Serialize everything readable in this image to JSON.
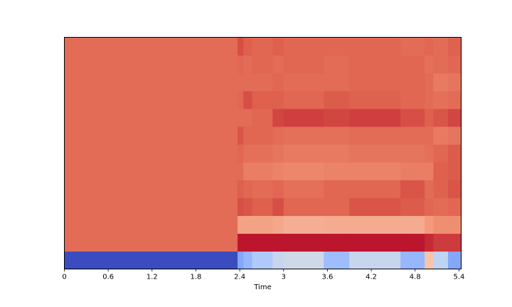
{
  "chart_data": {
    "type": "heatmap",
    "title": "",
    "xlabel": "Time",
    "ylabel": "",
    "xlim": [
      0,
      5.43
    ],
    "x_ticks": [
      0,
      0.6,
      1.2,
      1.8,
      2.4,
      3.0,
      3.6,
      4.2,
      4.8,
      5.4
    ],
    "x_tick_labels": [
      "0",
      "0.6",
      "1.2",
      "1.8",
      "2.4",
      "3",
      "3.6",
      "4.2",
      "4.8",
      "5.4"
    ],
    "y_ticks": [],
    "colormap": "coolwarm",
    "value_range": [
      -1,
      1
    ],
    "n_rows": 13,
    "time_segments": [
      {
        "start": 0.0,
        "end": 2.37,
        "values": [
          -1.0,
          0.7,
          0.7,
          0.7,
          0.7,
          0.7,
          0.7,
          0.7,
          0.7,
          0.7,
          0.7,
          0.7,
          0.7
        ]
      },
      {
        "start": 2.37,
        "end": 2.45,
        "values": [
          -0.55,
          0.95,
          0.45,
          0.8,
          0.75,
          0.7,
          0.72,
          0.78,
          0.7,
          0.72,
          0.7,
          0.72,
          0.8
        ]
      },
      {
        "start": 2.45,
        "end": 2.57,
        "values": [
          -0.45,
          0.95,
          0.45,
          0.78,
          0.72,
          0.62,
          0.68,
          0.72,
          0.7,
          0.8,
          0.7,
          0.7,
          0.75
        ]
      },
      {
        "start": 2.57,
        "end": 2.85,
        "values": [
          -0.3,
          0.95,
          0.45,
          0.75,
          0.7,
          0.62,
          0.68,
          0.72,
          0.72,
          0.75,
          0.7,
          0.72,
          0.72
        ]
      },
      {
        "start": 2.85,
        "end": 3.0,
        "values": [
          -0.15,
          0.95,
          0.42,
          0.8,
          0.72,
          0.6,
          0.66,
          0.7,
          0.82,
          0.75,
          0.72,
          0.7,
          0.75
        ]
      },
      {
        "start": 3.0,
        "end": 3.55,
        "values": [
          -0.1,
          0.95,
          0.38,
          0.72,
          0.68,
          0.58,
          0.64,
          0.68,
          0.84,
          0.72,
          0.7,
          0.72,
          0.72
        ]
      },
      {
        "start": 3.55,
        "end": 3.9,
        "values": [
          -0.4,
          0.95,
          0.4,
          0.72,
          0.72,
          0.6,
          0.64,
          0.68,
          0.82,
          0.76,
          0.7,
          0.7,
          0.72
        ]
      },
      {
        "start": 3.9,
        "end": 4.6,
        "values": [
          -0.15,
          0.95,
          0.4,
          0.78,
          0.72,
          0.6,
          0.66,
          0.7,
          0.84,
          0.74,
          0.72,
          0.72,
          0.72
        ]
      },
      {
        "start": 4.6,
        "end": 4.93,
        "values": [
          -0.45,
          0.95,
          0.4,
          0.76,
          0.78,
          0.62,
          0.66,
          0.7,
          0.8,
          0.72,
          0.72,
          0.72,
          0.7
        ]
      },
      {
        "start": 4.93,
        "end": 5.05,
        "values": [
          0.25,
          0.9,
          0.5,
          0.72,
          0.7,
          0.62,
          0.68,
          0.7,
          0.75,
          0.7,
          0.7,
          0.68,
          0.72
        ]
      },
      {
        "start": 5.05,
        "end": 5.25,
        "values": [
          -0.2,
          0.85,
          0.55,
          0.7,
          0.74,
          0.75,
          0.72,
          0.64,
          0.78,
          0.68,
          0.64,
          0.7,
          0.7
        ]
      },
      {
        "start": 5.25,
        "end": 5.43,
        "values": [
          -0.55,
          0.85,
          0.55,
          0.72,
          0.78,
          0.76,
          0.76,
          0.66,
          0.82,
          0.7,
          0.66,
          0.72,
          0.74
        ]
      }
    ]
  }
}
